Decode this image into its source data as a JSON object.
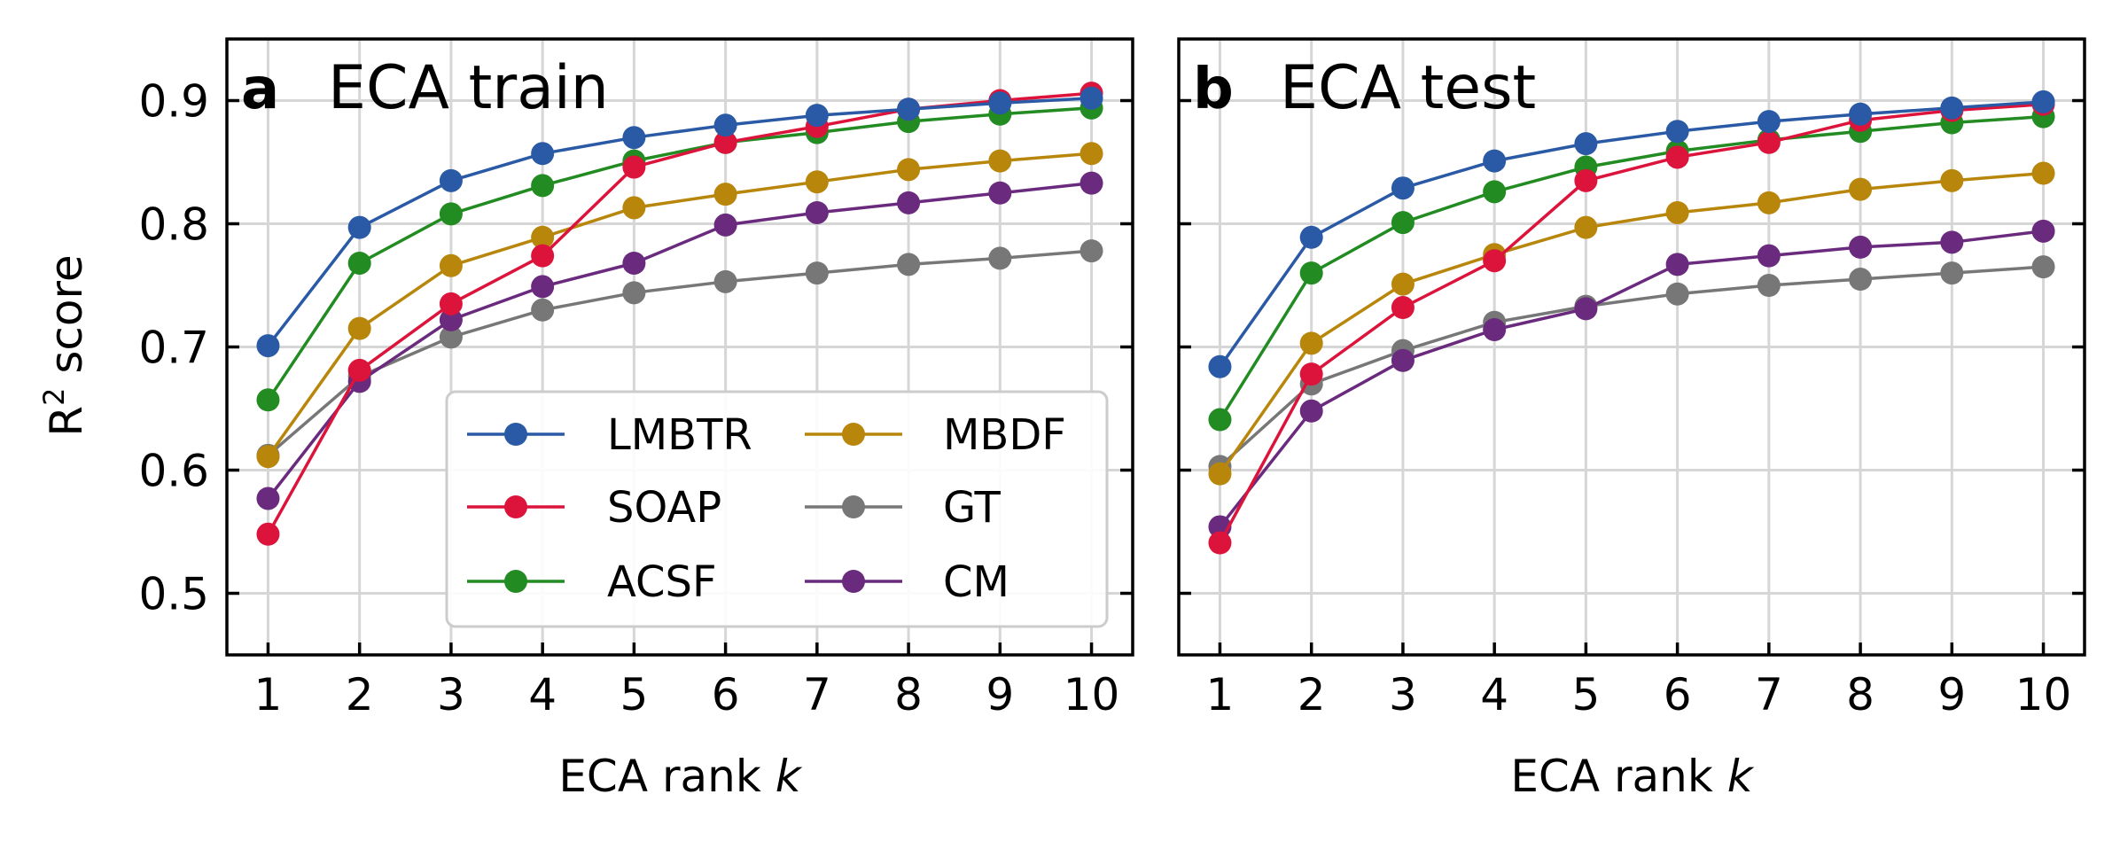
{
  "chart_data": [
    {
      "type": "line",
      "panel_label": "a",
      "title": "ECA train",
      "xlabel_prefix": "ECA rank ",
      "xlabel_var": "k",
      "ylabel_base": "R",
      "ylabel_sup": "2",
      "ylabel_rest": " score",
      "x": [
        1,
        2,
        3,
        4,
        5,
        6,
        7,
        8,
        9,
        10
      ],
      "xlim": [
        0.55,
        10.45
      ],
      "ylim": [
        0.45,
        0.95
      ],
      "yticks": [
        0.5,
        0.6,
        0.7,
        0.8,
        0.9
      ],
      "ytick_labels": [
        "0.5",
        "0.6",
        "0.7",
        "0.8",
        "0.9"
      ],
      "grid": true,
      "legend_position": "lower-right",
      "series": [
        {
          "name": "GT",
          "color": "#777777",
          "values": [
            0.612,
            0.676,
            0.708,
            0.73,
            0.744,
            0.753,
            0.76,
            0.767,
            0.772,
            0.778
          ]
        },
        {
          "name": "CM",
          "color": "#6a2a7e",
          "values": [
            0.577,
            0.672,
            0.722,
            0.749,
            0.768,
            0.799,
            0.809,
            0.817,
            0.825,
            0.833
          ]
        },
        {
          "name": "MBDF",
          "color": "#b8860b",
          "values": [
            0.611,
            0.715,
            0.766,
            0.789,
            0.813,
            0.824,
            0.834,
            0.844,
            0.851,
            0.857
          ]
        },
        {
          "name": "ACSF",
          "color": "#228b22",
          "values": [
            0.657,
            0.768,
            0.808,
            0.831,
            0.851,
            0.866,
            0.874,
            0.883,
            0.889,
            0.894
          ]
        },
        {
          "name": "SOAP",
          "color": "#dc143c",
          "values": [
            0.548,
            0.681,
            0.735,
            0.774,
            0.846,
            0.866,
            0.879,
            0.893,
            0.9,
            0.906
          ]
        },
        {
          "name": "LMBTR",
          "color": "#2a5aa5",
          "values": [
            0.701,
            0.797,
            0.835,
            0.857,
            0.87,
            0.88,
            0.888,
            0.893,
            0.898,
            0.902
          ]
        }
      ]
    },
    {
      "type": "line",
      "panel_label": "b",
      "title": "ECA test",
      "xlabel_prefix": "ECA rank ",
      "xlabel_var": "k",
      "x": [
        1,
        2,
        3,
        4,
        5,
        6,
        7,
        8,
        9,
        10
      ],
      "xlim": [
        0.55,
        10.45
      ],
      "ylim": [
        0.45,
        0.95
      ],
      "yticks": [
        0.5,
        0.6,
        0.7,
        0.8,
        0.9
      ],
      "grid": true,
      "series": [
        {
          "name": "GT",
          "color": "#777777",
          "values": [
            0.603,
            0.67,
            0.697,
            0.72,
            0.733,
            0.743,
            0.75,
            0.755,
            0.76,
            0.765
          ]
        },
        {
          "name": "CM",
          "color": "#6a2a7e",
          "values": [
            0.554,
            0.648,
            0.689,
            0.714,
            0.731,
            0.767,
            0.774,
            0.781,
            0.785,
            0.794
          ]
        },
        {
          "name": "MBDF",
          "color": "#b8860b",
          "values": [
            0.597,
            0.703,
            0.751,
            0.775,
            0.797,
            0.809,
            0.817,
            0.828,
            0.835,
            0.841
          ]
        },
        {
          "name": "ACSF",
          "color": "#228b22",
          "values": [
            0.641,
            0.76,
            0.801,
            0.826,
            0.846,
            0.859,
            0.868,
            0.875,
            0.882,
            0.887
          ]
        },
        {
          "name": "SOAP",
          "color": "#dc143c",
          "values": [
            0.541,
            0.678,
            0.732,
            0.77,
            0.835,
            0.854,
            0.866,
            0.884,
            0.892,
            0.897
          ]
        },
        {
          "name": "LMBTR",
          "color": "#2a5aa5",
          "values": [
            0.684,
            0.789,
            0.829,
            0.851,
            0.865,
            0.875,
            0.883,
            0.889,
            0.894,
            0.899
          ]
        }
      ]
    }
  ],
  "legend": {
    "columns": [
      [
        "LMBTR",
        "SOAP",
        "ACSF"
      ],
      [
        "MBDF",
        "GT",
        "CM"
      ]
    ]
  }
}
